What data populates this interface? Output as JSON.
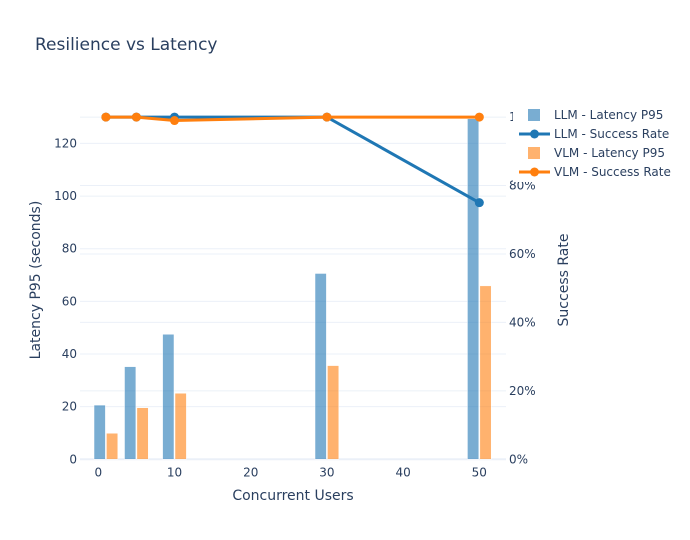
{
  "chart_data": {
    "type": "bar",
    "title": "Resilience vs Latency",
    "xlabel": "Concurrent Users",
    "ylabel": "Latency P95 (seconds)",
    "y2label": "Success Rate",
    "x": [
      1,
      5,
      10,
      30,
      50
    ],
    "xlim": [
      -2.4,
      53.5
    ],
    "ylim": [
      0,
      136.5
    ],
    "y2lim": [
      0,
      1.05
    ],
    "xticks": [
      0,
      10,
      20,
      30,
      40,
      50
    ],
    "xtick_labels": [
      "0",
      "10",
      "20",
      "30",
      "40",
      "50"
    ],
    "yticks": [
      0,
      20,
      40,
      60,
      80,
      100,
      120
    ],
    "ytick_labels": [
      "0",
      "20",
      "40",
      "60",
      "80",
      "100",
      "120"
    ],
    "y2ticks": [
      0,
      0.2,
      0.4,
      0.6,
      0.8,
      1.0
    ],
    "y2tick_labels": [
      "0%",
      "20%",
      "40%",
      "60%",
      "80%",
      "100%"
    ],
    "grid": true,
    "legend_position": "right",
    "series": [
      {
        "name": "LLM - Latency P95",
        "type": "bar",
        "axis": "y",
        "color": "#1f77b4",
        "values": [
          20.6,
          35.2,
          47.5,
          70.6,
          129.4
        ]
      },
      {
        "name": "VLM - Latency P95",
        "type": "bar",
        "axis": "y",
        "color": "#ff7f0e",
        "values": [
          9.9,
          19.6,
          25.1,
          35.6,
          65.9
        ]
      },
      {
        "name": "LLM - Success Rate",
        "type": "line",
        "axis": "y2",
        "color": "#1f77b4",
        "values": [
          1.0,
          1.0,
          1.0,
          1.0,
          0.75
        ]
      },
      {
        "name": "VLM - Success Rate",
        "type": "line",
        "axis": "y2",
        "color": "#ff7f0e",
        "values": [
          1.0,
          1.0,
          0.99,
          1.0,
          1.0
        ]
      }
    ],
    "legend": [
      {
        "name": "LLM - Latency P95",
        "symbol": "bar",
        "color": "#1f77b4"
      },
      {
        "name": "LLM - Success Rate",
        "symbol": "line",
        "color": "#1f77b4"
      },
      {
        "name": "VLM - Latency P95",
        "symbol": "bar",
        "color": "#ff7f0e"
      },
      {
        "name": "VLM - Success Rate",
        "symbol": "line",
        "color": "#ff7f0e"
      }
    ]
  }
}
